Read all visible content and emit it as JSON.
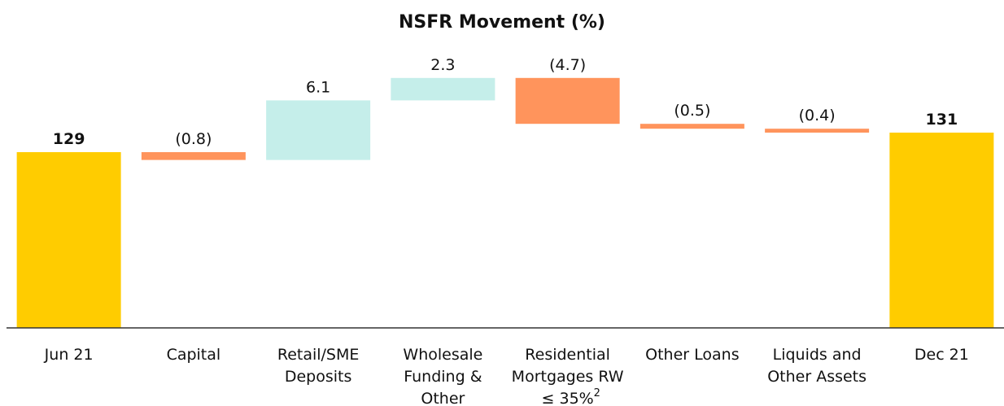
{
  "chart_data": {
    "type": "waterfall",
    "title": "NSFR Movement (%)",
    "categories": [
      "Jun 21",
      "Capital",
      "Retail/SME\nDeposits",
      "Wholesale\nFunding &\nOther",
      "Residential\nMortgages RW\n≤ 35%",
      "Other Loans",
      "Liquids and\nOther Assets",
      "Dec 21"
    ],
    "category_superscripts": [
      null,
      null,
      null,
      null,
      "2",
      null,
      null,
      null
    ],
    "values": [
      129,
      -0.8,
      6.1,
      2.3,
      -4.7,
      -0.5,
      -0.4,
      131
    ],
    "value_labels": [
      "129",
      "(0.8)",
      "6.1",
      "2.3",
      "(4.7)",
      "(0.5)",
      "(0.4)",
      "131"
    ],
    "measures": [
      "total",
      "relative",
      "relative",
      "relative",
      "relative",
      "relative",
      "relative",
      "total"
    ],
    "colors": {
      "total": "#FFCC00",
      "increase": "#C5EEEA",
      "decrease": "#FF945C"
    },
    "ylim": [
      111,
      140
    ]
  }
}
